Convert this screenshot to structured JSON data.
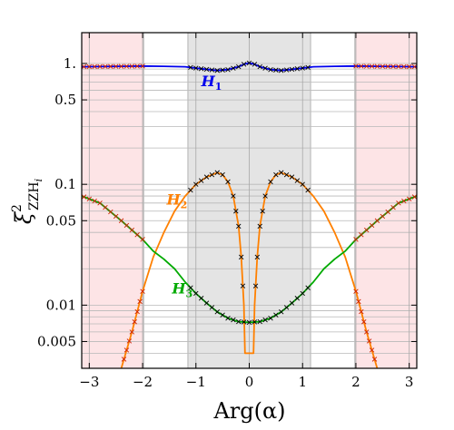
{
  "chart_data": {
    "type": "line",
    "xlabel": "Arg(α)",
    "ylabel_main": "ξ",
    "ylabel_sup": "2",
    "ylabel_sub": "ZZH",
    "ylabel_subsub": "i",
    "xlim": [
      -3.1416,
      3.1416
    ],
    "ylim": [
      0.003,
      1.8
    ],
    "yscale": "log",
    "x_ticks": [
      -3,
      -2,
      -1,
      0,
      1,
      2,
      3
    ],
    "x_tick_labels": [
      "−3",
      "−2",
      "−1",
      "0",
      "1",
      "2",
      "3"
    ],
    "y_ticks": [
      0.005,
      0.01,
      0.05,
      0.1,
      0.5,
      1
    ],
    "y_tick_labels": [
      "0.005",
      "0.01",
      "0.05",
      "0.1",
      "0.5",
      "1."
    ],
    "grid": "horizontal log gridlines, vertical lines at integer x",
    "shaded_regions": [
      {
        "range": [
          -3.1416,
          -1.98
        ],
        "color": "#fde4e6"
      },
      {
        "range": [
          1.98,
          3.1416
        ],
        "color": "#fde4e6"
      },
      {
        "range": [
          -1.15,
          1.15
        ],
        "color": "#e4e4e4"
      }
    ],
    "region_edge_lines": [
      -1.98,
      -1.15,
      1.15,
      1.98
    ],
    "series": [
      {
        "name": "H",
        "subscript": "1",
        "color": "#0000ee",
        "x": [
          -3.1416,
          -2.8,
          -2.4,
          -2.0,
          -1.6,
          -1.2,
          -0.9,
          -0.6,
          -0.4,
          -0.2,
          -0.1,
          0,
          0.1,
          0.2,
          0.4,
          0.6,
          0.9,
          1.2,
          1.6,
          2.0,
          2.4,
          2.8,
          3.1416
        ],
        "y": [
          0.94,
          0.943,
          0.947,
          0.952,
          0.948,
          0.94,
          0.905,
          0.875,
          0.89,
          0.94,
          0.985,
          1.01,
          0.985,
          0.94,
          0.89,
          0.875,
          0.905,
          0.94,
          0.948,
          0.952,
          0.947,
          0.943,
          0.94
        ]
      },
      {
        "name": "H",
        "subscript": "2",
        "color": "#ff8000",
        "x": [
          -2.4,
          -2.2,
          -2.0,
          -1.8,
          -1.6,
          -1.4,
          -1.2,
          -1.0,
          -0.8,
          -0.6,
          -0.5,
          -0.4,
          -0.3,
          -0.2,
          -0.15,
          -0.1,
          -0.08,
          0.08,
          0.1,
          0.15,
          0.2,
          0.3,
          0.4,
          0.5,
          0.6,
          0.8,
          1.0,
          1.2,
          1.4,
          1.6,
          1.8,
          2.0,
          2.2,
          2.4
        ],
        "y": [
          0.003,
          0.006,
          0.013,
          0.025,
          0.04,
          0.06,
          0.08,
          0.1,
          0.115,
          0.125,
          0.12,
          0.105,
          0.08,
          0.045,
          0.025,
          0.01,
          0.004,
          0.004,
          0.01,
          0.025,
          0.045,
          0.08,
          0.105,
          0.12,
          0.125,
          0.115,
          0.1,
          0.08,
          0.06,
          0.04,
          0.025,
          0.013,
          0.006,
          0.003
        ]
      },
      {
        "name": "H",
        "subscript": "3",
        "color": "#00aa00",
        "x": [
          -3.1416,
          -2.8,
          -2.4,
          -2.0,
          -1.8,
          -1.6,
          -1.4,
          -1.2,
          -1.0,
          -0.8,
          -0.6,
          -0.4,
          -0.2,
          0,
          0.2,
          0.4,
          0.6,
          0.8,
          1.0,
          1.2,
          1.4,
          1.6,
          1.8,
          2.0,
          2.4,
          2.8,
          3.1416
        ],
        "y": [
          0.08,
          0.07,
          0.05,
          0.035,
          0.028,
          0.024,
          0.02,
          0.0155,
          0.0125,
          0.0104,
          0.0088,
          0.0078,
          0.0073,
          0.0072,
          0.0073,
          0.0078,
          0.0088,
          0.0104,
          0.0125,
          0.0155,
          0.02,
          0.024,
          0.028,
          0.035,
          0.05,
          0.07,
          0.08
        ]
      }
    ],
    "markers": {
      "symbol": "×",
      "colors": {
        "gray_region": "#000000",
        "pink_region": "#cc2200"
      },
      "upper_x": [
        -3.1,
        -3.0,
        -2.9,
        -2.8,
        -2.7,
        -2.6,
        -2.5,
        -2.4,
        -2.3,
        -2.2,
        -2.1,
        -2.0,
        -1.1,
        -1.0,
        -0.9,
        -0.8,
        -0.7,
        -0.6,
        -0.5,
        -0.4,
        -0.3,
        -0.2,
        -0.1,
        0,
        0.1,
        0.2,
        0.3,
        0.4,
        0.5,
        0.6,
        0.7,
        0.8,
        0.9,
        1.0,
        1.1,
        2.0,
        2.1,
        2.2,
        2.3,
        2.4,
        2.5,
        2.6,
        2.7,
        2.8,
        2.9,
        3.0,
        3.1
      ],
      "middle_x": [
        -1.1,
        -1.0,
        -0.9,
        -0.8,
        -0.7,
        -0.6,
        -0.5,
        -0.4,
        -0.3,
        -0.25,
        -0.2,
        -0.15,
        -0.12,
        0.12,
        0.15,
        0.2,
        0.25,
        0.3,
        0.4,
        0.5,
        0.6,
        0.7,
        0.8,
        0.9,
        1.0,
        1.1,
        -2.0,
        -2.05,
        -2.1,
        -2.15,
        -2.2,
        -2.25,
        -2.3,
        -2.35,
        2.0,
        2.05,
        2.1,
        2.15,
        2.2,
        2.25,
        2.3,
        2.35
      ],
      "lower_x": [
        -3.1,
        -3.0,
        -2.9,
        -2.8,
        -2.7,
        -2.6,
        -2.5,
        -2.4,
        -2.3,
        -2.2,
        -2.1,
        -2.0,
        -1.1,
        -1.0,
        -0.9,
        -0.8,
        -0.7,
        -0.6,
        -0.5,
        -0.4,
        -0.3,
        -0.2,
        -0.1,
        0,
        0.1,
        0.2,
        0.3,
        0.4,
        0.5,
        0.6,
        0.7,
        0.8,
        0.9,
        1.0,
        1.1,
        2.0,
        2.1,
        2.2,
        2.3,
        2.4,
        2.5,
        2.6,
        2.7,
        2.8,
        2.9,
        3.0,
        3.1
      ]
    }
  }
}
